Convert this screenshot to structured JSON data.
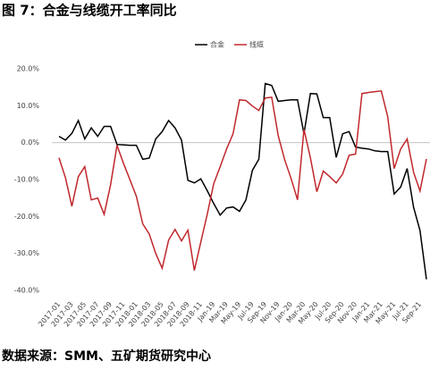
{
  "chart_data": {
    "type": "line",
    "title": "图 7：合金与线缆开工率同比",
    "source": "数据来源：SMM、五矿期货研究中心",
    "categories": [
      "2017-01",
      null,
      "2017-03",
      null,
      "2017-05",
      null,
      "2017-07",
      null,
      "2017-09",
      null,
      "2017-11",
      null,
      "2018-01",
      null,
      "2018-03",
      null,
      "2018-05",
      null,
      "2018-07",
      null,
      "2018-09",
      null,
      "2018-11",
      null,
      "Jan-19",
      null,
      "Mar-19",
      null,
      "May-19",
      null,
      "Jul-19",
      null,
      "Sep-19",
      null,
      "Nov-19",
      null,
      "Jan-20",
      null,
      "Mar-20",
      null,
      "May-20",
      null,
      "Jul-20",
      null,
      "Sep-20",
      null,
      "Nov-20",
      null,
      "Jan-21",
      null,
      "Mar-21",
      null,
      "May-21",
      null,
      "Jul-21",
      null,
      "Sep-21",
      null
    ],
    "series": [
      {
        "name": "合金",
        "color": "#000000",
        "values": [
          1.7,
          0.7,
          2.5,
          6,
          1,
          4,
          1.7,
          4.4,
          4.4,
          -0.5,
          -0.6,
          -0.7,
          -0.7,
          -4.5,
          -4.2,
          1,
          3,
          6,
          4,
          0.7,
          -10.2,
          -10.9,
          -9.8,
          -13,
          -16.5,
          -19.6,
          -17.7,
          -17.4,
          -18.6,
          -15.5,
          -7.5,
          -4.5,
          16,
          15.5,
          11.2,
          11.4,
          11.6,
          11.6,
          2.4,
          13.3,
          13.2,
          6.8,
          6.8,
          -4,
          2.4,
          3,
          -1.2,
          -1.5,
          -1.7,
          -2.2,
          -2.4,
          -2.4,
          -13.9,
          -12,
          -7,
          -17.5,
          -23.8,
          -37
        ]
      },
      {
        "name": "线缆",
        "color": "#c0282d",
        "values": [
          -4.1,
          -9.5,
          -17.2,
          -9.2,
          -6.5,
          -15.5,
          -15,
          -19.4,
          -11.4,
          -0.7,
          -5.6,
          -10,
          -14.5,
          -22,
          -24.7,
          -30,
          -34,
          -26.4,
          -23.5,
          -26.6,
          -23.7,
          -34.6,
          -26.9,
          -19.4,
          -11.1,
          -6.5,
          -1.7,
          2.4,
          11.6,
          11.4,
          9.9,
          8.7,
          12.1,
          12.3,
          1.9,
          -4.6,
          -9.7,
          -15.5,
          3.6,
          -4.1,
          -13.3,
          -7.7,
          -9.2,
          -10.9,
          -8.5,
          -3.4,
          -3.1,
          13.3,
          13.6,
          13.8,
          14,
          7,
          -7,
          -1.7,
          1,
          -8,
          -13.1,
          -4.4
        ]
      }
    ],
    "ylim": [
      -40,
      20
    ],
    "yticks": [
      {
        "value": -40,
        "label": "-40.0%"
      },
      {
        "value": -30,
        "label": "-30.0%"
      },
      {
        "value": -20,
        "label": "-20.0%"
      },
      {
        "value": -10,
        "label": "-10.0%"
      },
      {
        "value": 0,
        "label": "0.0%"
      },
      {
        "value": 10,
        "label": "10.0%"
      },
      {
        "value": 20,
        "label": "20.0%"
      }
    ],
    "grid": false,
    "legend": "top"
  }
}
